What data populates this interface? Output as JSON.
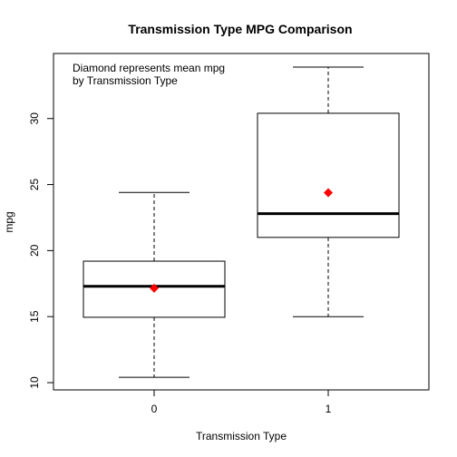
{
  "chart_data": {
    "type": "boxplot",
    "title": "Transmission Type MPG Comparison",
    "xlabel": "Transmission Type",
    "ylabel": "mpg",
    "categories": [
      "0",
      "1"
    ],
    "ylim": [
      10,
      34
    ],
    "yticks": [
      10,
      15,
      20,
      25,
      30
    ],
    "boxes": [
      {
        "category": "0",
        "whisker_low": 10.4,
        "q1": 14.95,
        "median": 17.3,
        "q3": 19.2,
        "whisker_high": 24.4,
        "mean": 17.15
      },
      {
        "category": "1",
        "whisker_low": 15.0,
        "q1": 21.0,
        "median": 22.8,
        "q3": 30.4,
        "whisker_high": 33.9,
        "mean": 24.39
      }
    ],
    "mean_marker_color": "#ff0000",
    "annotation_lines": [
      "Diamond represents mean mpg",
      "by Transmission Type"
    ],
    "grid": false,
    "legend": "none"
  }
}
